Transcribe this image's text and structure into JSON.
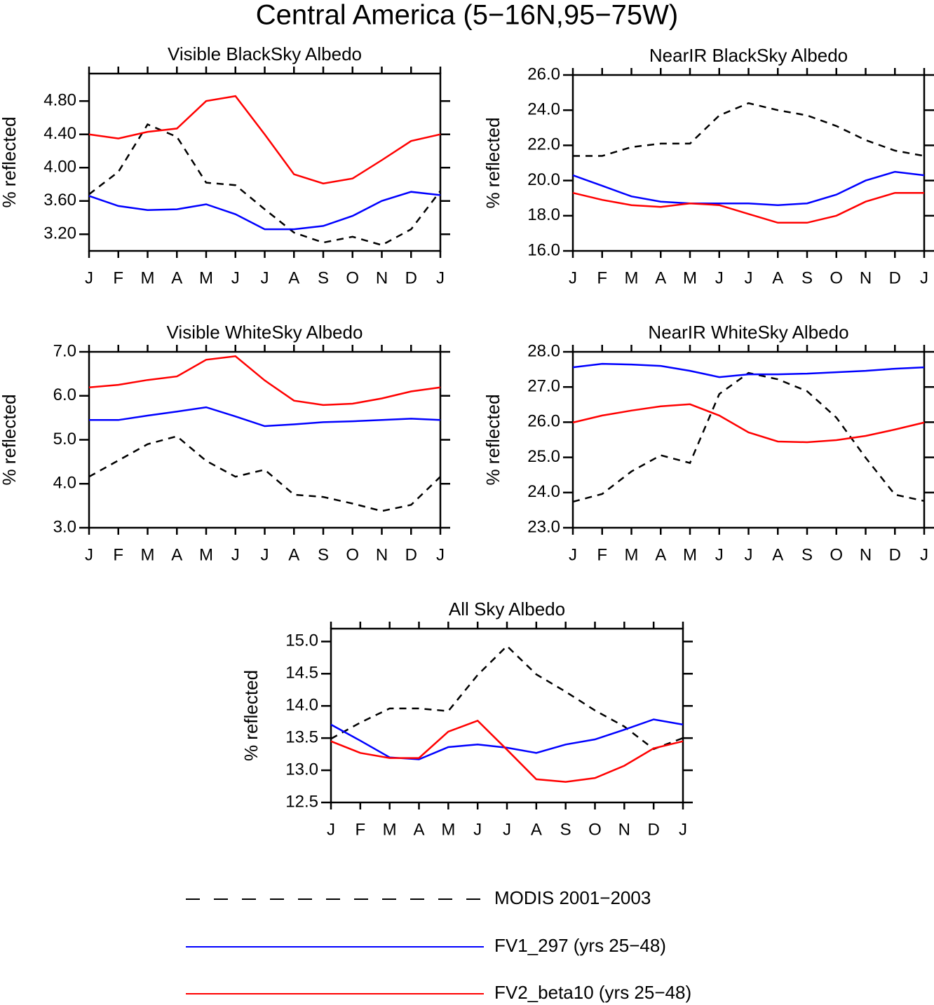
{
  "title": "Central America (5−16N,95−75W)",
  "chart_data": [
    {
      "type": "line",
      "title": "Visible BlackSky Albedo",
      "ylabel": "% reflected",
      "categories": [
        "J",
        "F",
        "M",
        "A",
        "M",
        "J",
        "J",
        "A",
        "S",
        "O",
        "N",
        "D",
        "J"
      ],
      "ylim": [
        3.0,
        5.13
      ],
      "yticks": [
        {
          "value": 3.2,
          "label": "3.20"
        },
        {
          "value": 3.6,
          "label": "3.60"
        },
        {
          "value": 4.0,
          "label": "4.00"
        },
        {
          "value": 4.4,
          "label": "4.40"
        },
        {
          "value": 4.8,
          "label": "4.80"
        }
      ],
      "series": [
        {
          "name": "MODIS 2001−2003",
          "color": "#000000",
          "dashed": true,
          "values": [
            3.68,
            3.95,
            4.52,
            4.37,
            3.82,
            3.79,
            3.5,
            3.22,
            3.1,
            3.17,
            3.07,
            3.26,
            3.72
          ]
        },
        {
          "name": "FV1_297 (yrs 25−48)",
          "color": "#0000ff",
          "dashed": false,
          "values": [
            3.66,
            3.54,
            3.49,
            3.5,
            3.56,
            3.44,
            3.26,
            3.26,
            3.3,
            3.42,
            3.6,
            3.71,
            3.67
          ]
        },
        {
          "name": "FV2_beta10 (yrs 25−48)",
          "color": "#ff0000",
          "dashed": false,
          "values": [
            4.4,
            4.35,
            4.43,
            4.47,
            4.8,
            4.86,
            4.4,
            3.92,
            3.81,
            3.87,
            4.09,
            4.32,
            4.4
          ]
        }
      ]
    },
    {
      "type": "line",
      "title": "NearIR BlackSky Albedo",
      "ylabel": "% reflected",
      "categories": [
        "J",
        "F",
        "M",
        "A",
        "M",
        "J",
        "J",
        "A",
        "S",
        "O",
        "N",
        "D",
        "J"
      ],
      "ylim": [
        16,
        26
      ],
      "yticks": [
        {
          "value": 16,
          "label": "16.0"
        },
        {
          "value": 18,
          "label": "18.0"
        },
        {
          "value": 20,
          "label": "20.0"
        },
        {
          "value": 22,
          "label": "22.0"
        },
        {
          "value": 24,
          "label": "24.0"
        },
        {
          "value": 26,
          "label": "26.0"
        }
      ],
      "series": [
        {
          "name": "MODIS 2001−2003",
          "color": "#000000",
          "dashed": true,
          "values": [
            21.4,
            21.4,
            21.9,
            22.1,
            22.1,
            23.7,
            24.4,
            24.0,
            23.7,
            23.1,
            22.3,
            21.7,
            21.4
          ]
        },
        {
          "name": "FV1_297 (yrs 25−48)",
          "color": "#0000ff",
          "dashed": false,
          "values": [
            20.3,
            19.7,
            19.1,
            18.8,
            18.7,
            18.7,
            18.7,
            18.6,
            18.7,
            19.2,
            20.0,
            20.5,
            20.3
          ]
        },
        {
          "name": "FV2_beta10 (yrs 25−48)",
          "color": "#ff0000",
          "dashed": false,
          "values": [
            19.3,
            18.9,
            18.6,
            18.5,
            18.7,
            18.6,
            18.1,
            17.6,
            17.6,
            18.0,
            18.8,
            19.3,
            19.3
          ]
        }
      ]
    },
    {
      "type": "line",
      "title": "Visible WhiteSky Albedo",
      "ylabel": "% reflected",
      "categories": [
        "J",
        "F",
        "M",
        "A",
        "M",
        "J",
        "J",
        "A",
        "S",
        "O",
        "N",
        "D",
        "J"
      ],
      "ylim": [
        3,
        7
      ],
      "yticks": [
        {
          "value": 3,
          "label": "3.0"
        },
        {
          "value": 4,
          "label": "4.0"
        },
        {
          "value": 5,
          "label": "5.0"
        },
        {
          "value": 6,
          "label": "6.0"
        },
        {
          "value": 7,
          "label": "7.0"
        }
      ],
      "series": [
        {
          "name": "MODIS 2001−2003",
          "color": "#000000",
          "dashed": true,
          "values": [
            4.16,
            4.53,
            4.9,
            5.08,
            4.52,
            4.16,
            4.32,
            3.75,
            3.7,
            3.55,
            3.38,
            3.52,
            4.16
          ]
        },
        {
          "name": "FV1_297 (yrs 25−48)",
          "color": "#0000ff",
          "dashed": false,
          "values": [
            5.45,
            5.45,
            5.55,
            5.64,
            5.74,
            5.53,
            5.31,
            5.35,
            5.4,
            5.42,
            5.45,
            5.48,
            5.45
          ]
        },
        {
          "name": "FV2_beta10 (yrs 25−48)",
          "color": "#ff0000",
          "dashed": false,
          "values": [
            6.19,
            6.25,
            6.36,
            6.44,
            6.82,
            6.9,
            6.35,
            5.89,
            5.79,
            5.82,
            5.94,
            6.1,
            6.19
          ]
        }
      ]
    },
    {
      "type": "line",
      "title": "NearIR WhiteSky Albedo",
      "ylabel": "% reflected",
      "categories": [
        "J",
        "F",
        "M",
        "A",
        "M",
        "J",
        "J",
        "A",
        "S",
        "O",
        "N",
        "D",
        "J"
      ],
      "ylim": [
        23,
        28
      ],
      "yticks": [
        {
          "value": 23,
          "label": "23.0"
        },
        {
          "value": 24,
          "label": "24.0"
        },
        {
          "value": 25,
          "label": "25.0"
        },
        {
          "value": 26,
          "label": "26.0"
        },
        {
          "value": 27,
          "label": "27.0"
        },
        {
          "value": 28,
          "label": "28.0"
        }
      ],
      "series": [
        {
          "name": "MODIS 2001−2003",
          "color": "#000000",
          "dashed": true,
          "values": [
            23.74,
            23.96,
            24.6,
            25.06,
            24.84,
            26.8,
            27.4,
            27.22,
            26.88,
            26.13,
            24.99,
            23.94,
            23.76
          ]
        },
        {
          "name": "FV1_297 (yrs 25−48)",
          "color": "#0000ff",
          "dashed": false,
          "values": [
            27.56,
            27.66,
            27.64,
            27.6,
            27.46,
            27.28,
            27.36,
            27.36,
            27.38,
            27.42,
            27.46,
            27.52,
            27.56
          ]
        },
        {
          "name": "FV2_beta10 (yrs 25−48)",
          "color": "#ff0000",
          "dashed": false,
          "values": [
            25.99,
            26.19,
            26.33,
            26.45,
            26.51,
            26.19,
            25.71,
            25.45,
            25.43,
            25.49,
            25.61,
            25.79,
            25.99
          ]
        }
      ]
    },
    {
      "type": "line",
      "title": "All Sky Albedo",
      "ylabel": "% reflected",
      "categories": [
        "J",
        "F",
        "M",
        "A",
        "M",
        "J",
        "J",
        "A",
        "S",
        "O",
        "N",
        "D",
        "J"
      ],
      "ylim": [
        12.5,
        15.2
      ],
      "yticks": [
        12.5,
        {
          "value": 13,
          "label": "13.0"
        },
        13.5,
        {
          "value": 14,
          "label": "14.0"
        },
        14.5,
        {
          "value": 15,
          "label": "15.0"
        }
      ],
      "series": [
        {
          "name": "MODIS 2001−2003",
          "color": "#000000",
          "dashed": true,
          "values": [
            13.49,
            13.74,
            13.96,
            13.96,
            13.92,
            14.48,
            14.93,
            14.49,
            14.22,
            13.93,
            13.68,
            13.33,
            13.5
          ]
        },
        {
          "name": "FV1_297 (yrs 25−48)",
          "color": "#0000ff",
          "dashed": false,
          "values": [
            13.71,
            13.46,
            13.2,
            13.17,
            13.36,
            13.4,
            13.35,
            13.27,
            13.4,
            13.48,
            13.63,
            13.79,
            13.71
          ]
        },
        {
          "name": "FV2_beta10 (yrs 25−48)",
          "color": "#ff0000",
          "dashed": false,
          "values": [
            13.45,
            13.27,
            13.19,
            13.19,
            13.6,
            13.77,
            13.32,
            12.86,
            12.82,
            12.88,
            13.07,
            13.34,
            13.45
          ]
        }
      ]
    }
  ]
}
